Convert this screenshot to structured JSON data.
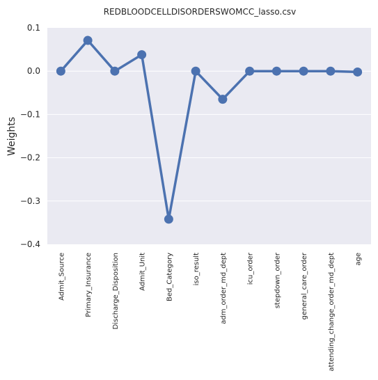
{
  "chart_data": {
    "type": "line",
    "title": "REDBLOODCELLDISORDERSWOMCC_lasso.csv",
    "xlabel": "",
    "ylabel": "Weights",
    "ylim": [
      -0.4,
      0.1
    ],
    "yticks": [
      0.1,
      0.0,
      -0.1,
      -0.2,
      -0.3,
      -0.4
    ],
    "ytick_labels": [
      "0.1",
      "0.0",
      "−0.1",
      "−0.2",
      "−0.3",
      "−0.4"
    ],
    "grid": true,
    "legend": "none",
    "categories": [
      "Admit_Source",
      "Primary_Insurance",
      "Discharge_Disposition",
      "Admit_Unit",
      "Bed_Category",
      "iso_result",
      "adm_order_md_dept",
      "icu_order",
      "stepdown_order",
      "general_care_order",
      "attending_change_order_md_dept",
      "age"
    ],
    "series": [
      {
        "values": [
          0.0,
          0.071,
          0.0,
          0.038,
          -0.342,
          0.0,
          -0.065,
          0.0,
          0.0,
          0.0,
          0.0,
          -0.002
        ],
        "color": "#4c72b0"
      }
    ],
    "colors": {
      "background": "#eaeaf2",
      "grid": "#ffffff",
      "line": "#4c72b0"
    }
  }
}
